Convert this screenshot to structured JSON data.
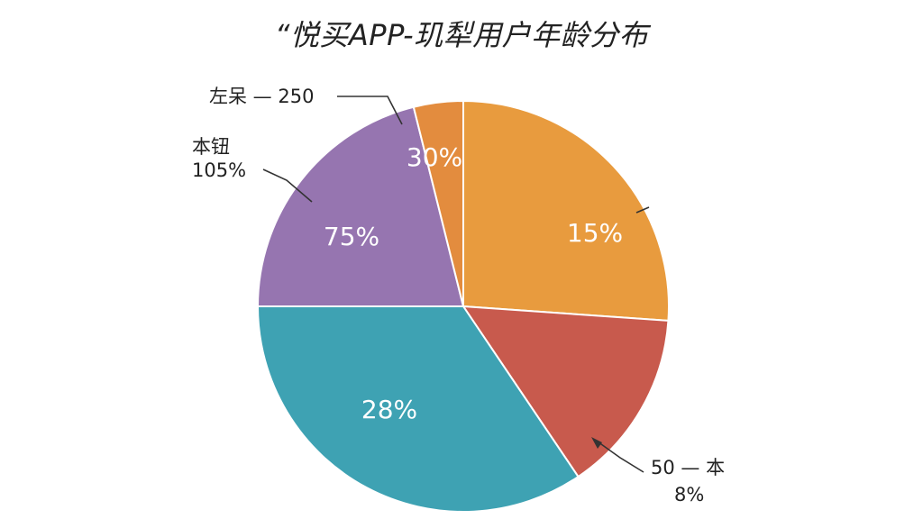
{
  "chart_data": {
    "type": "pie",
    "title": "“悦买APP-玑犁用户年龄分布",
    "slices": [
      {
        "label": "",
        "value": 15,
        "value_label": "15%",
        "color": "#e89b3e"
      },
      {
        "label": "",
        "value": 8,
        "value_label": "",
        "color": "#c85a4d"
      },
      {
        "label": "",
        "value": 28,
        "value_label": "28%",
        "color": "#3ea2b3"
      },
      {
        "label": "",
        "value": 75,
        "value_label": "75%",
        "color": "#9675b0"
      },
      {
        "label": "",
        "value": 30,
        "value_label": "30%",
        "color": "#e38c3e"
      }
    ],
    "annotations": [
      {
        "line1": "左呆 — 250",
        "line2": ""
      },
      {
        "line1": "本钮",
        "line2": "105%"
      },
      {
        "line1": "50 — 本",
        "line2": "8%"
      }
    ]
  }
}
